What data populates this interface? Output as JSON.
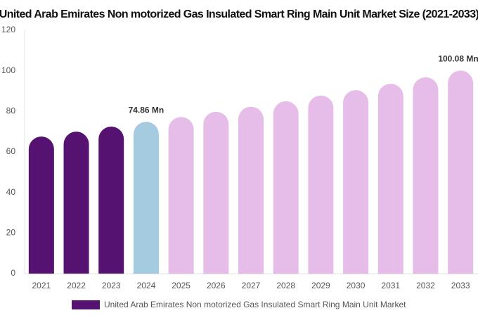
{
  "chart_data": {
    "type": "bar",
    "title": "United Arab Emirates Non motorized Gas Insulated Smart Ring Main Unit Market Size (2021-2033)",
    "categories": [
      "2021",
      "2022",
      "2023",
      "2024",
      "2025",
      "2026",
      "2027",
      "2028",
      "2029",
      "2030",
      "2031",
      "2032",
      "2033"
    ],
    "series": [
      {
        "name": "United Arab Emirates Non motorized Gas Insulated Smart Ring Main Unit Market",
        "color": "#561270",
        "values": [
          67.6,
          70,
          72.5,
          74.86,
          77.2,
          79.8,
          82.3,
          85,
          87.8,
          90.5,
          93.6,
          96.8,
          100.08
        ],
        "value_labels": [
          null,
          null,
          null,
          "74.86 Mn",
          null,
          null,
          null,
          null,
          null,
          null,
          null,
          null,
          "100.08 Mn"
        ],
        "colors": [
          "#561270",
          "#561270",
          "#561270",
          "#a4cbe0",
          "#e6bde8",
          "#e6bde8",
          "#e6bde8",
          "#e6bde8",
          "#e6bde8",
          "#e6bde8",
          "#e6bde8",
          "#e6bde8",
          "#e6bde8"
        ]
      }
    ],
    "ylim": [
      0,
      120
    ],
    "yticks": [
      0,
      20,
      40,
      60,
      80,
      100,
      120
    ],
    "grid": false,
    "legend": "bottom"
  }
}
